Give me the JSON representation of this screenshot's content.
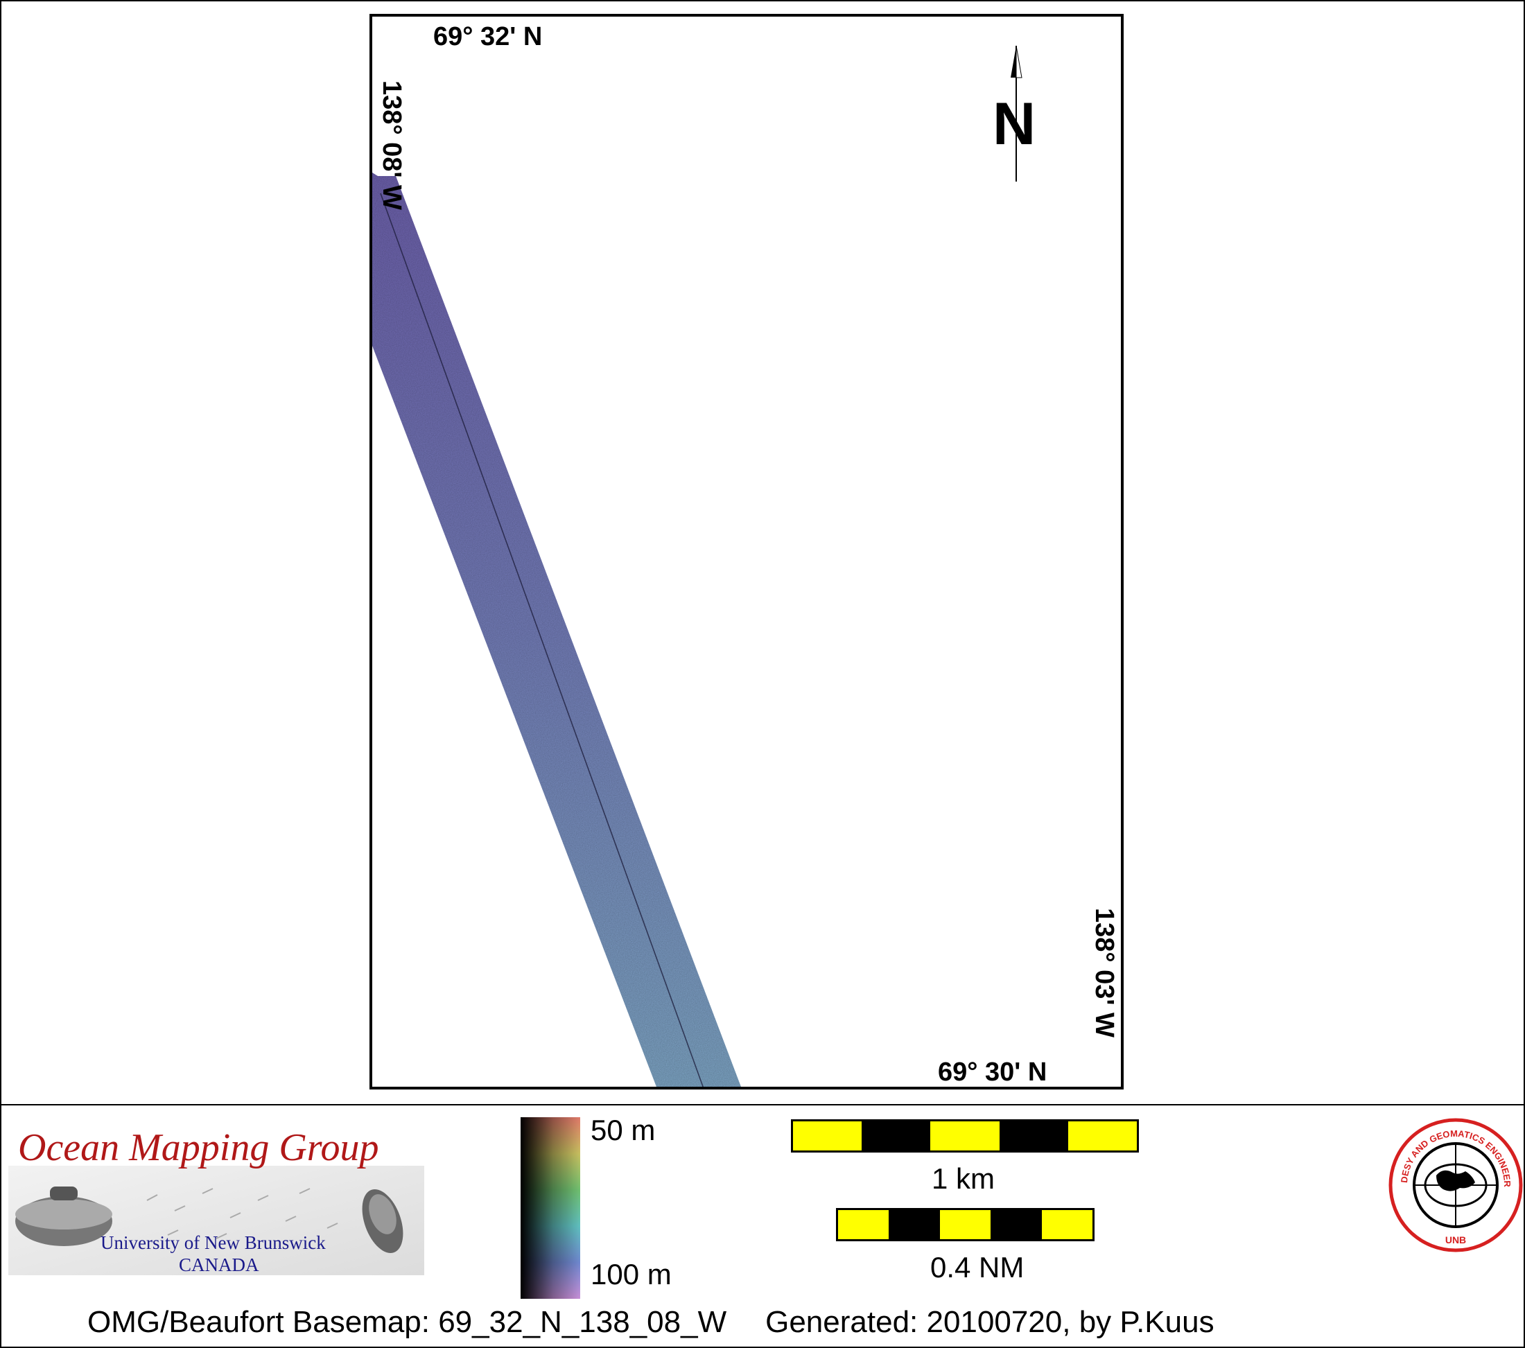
{
  "map": {
    "corner_labels": {
      "top_lat": "69° 32' N",
      "left_lon": "138° 08' W",
      "bottom_lat": "69° 30' N",
      "right_lon": "138° 03' W"
    },
    "north_arrow": {
      "letter": "N",
      "icon": "north-arrow-icon"
    },
    "swath_colors": {
      "top": "#7366b3",
      "bottom": "#7fa6c8"
    }
  },
  "legend": {
    "logo": {
      "title": "Ocean Mapping Group",
      "university": "University of New Brunswick",
      "country": "CANADA"
    },
    "colorbar": {
      "top_label": "50 m",
      "bottom_label": "100 m"
    },
    "scalebars": [
      {
        "label": "1 km",
        "segments": 5
      },
      {
        "label": "0.4 NM",
        "segments": 5
      }
    ],
    "seal": {
      "ring_text": "GEODESY AND GEOMATICS ENGINEERING",
      "bottom_text": "UNB",
      "color": "#d62020"
    }
  },
  "footer": {
    "basemap": "OMG/Beaufort Basemap: 69_32_N_138_08_W",
    "generated": "Generated: 20100720, by P.Kuus"
  }
}
